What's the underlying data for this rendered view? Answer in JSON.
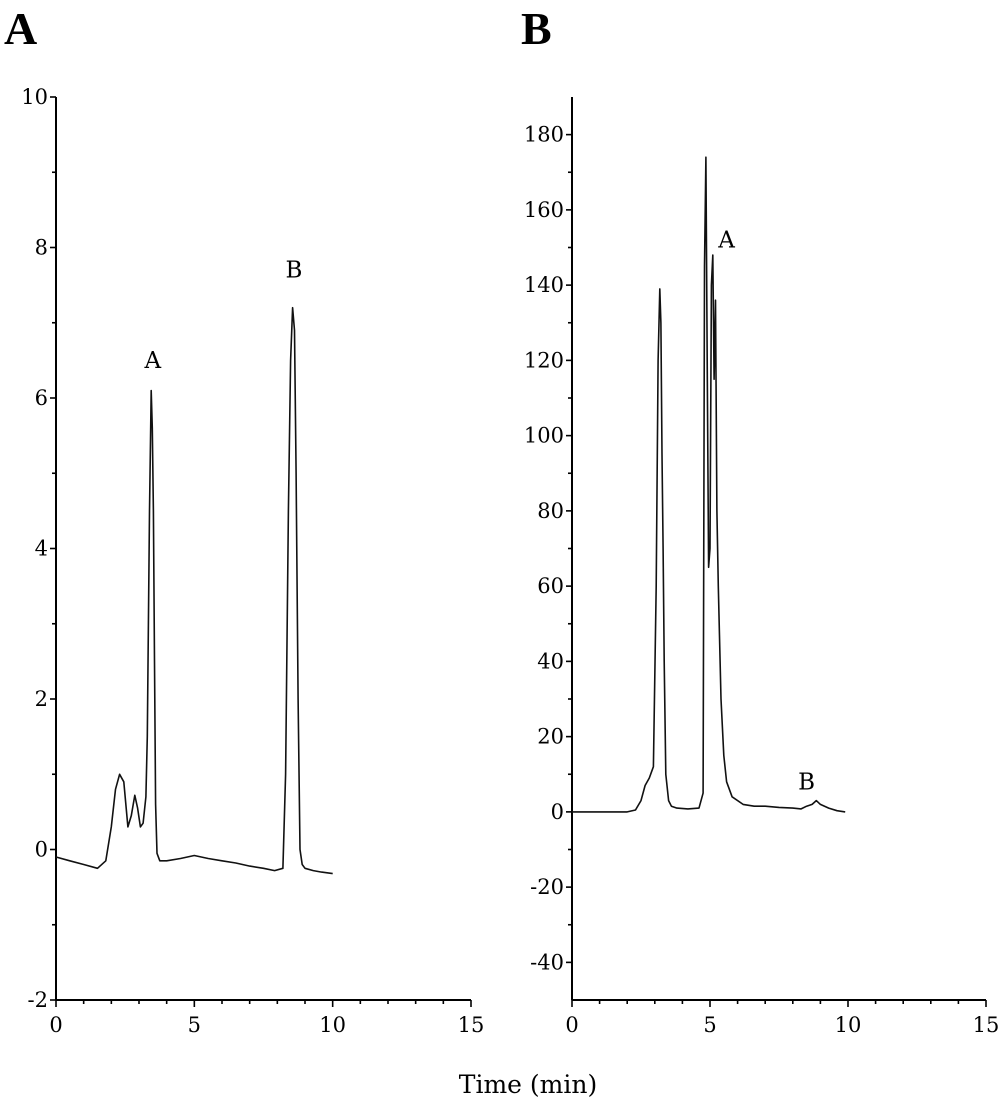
{
  "figure": {
    "x_title": "Time (min)"
  },
  "chart_data": [
    {
      "type": "line",
      "panel_label": "A",
      "xlabel": "",
      "ylabel": "",
      "xlim": [
        0,
        15
      ],
      "ylim": [
        -2,
        10
      ],
      "x_ticks": [
        0,
        5,
        10,
        15
      ],
      "y_ticks": [
        -2,
        0,
        2,
        4,
        6,
        8,
        10
      ],
      "grid": false,
      "annotations": [
        {
          "text": "A",
          "x": 3.5,
          "y": 6.4
        },
        {
          "text": "B",
          "x": 8.6,
          "y": 7.6
        }
      ],
      "series": [
        {
          "x": [
            0,
            0.5,
            1.0,
            1.5,
            1.8,
            2.0,
            2.15,
            2.3,
            2.45,
            2.6,
            2.72,
            2.85,
            2.95,
            3.05,
            3.15,
            3.25,
            3.3,
            3.38,
            3.44,
            3.48,
            3.52,
            3.56,
            3.6,
            3.65,
            3.75,
            4.0,
            4.5,
            5.0,
            5.5,
            6.0,
            6.5,
            7.0,
            7.5,
            7.9,
            8.2,
            8.3,
            8.4,
            8.48,
            8.55,
            8.62,
            8.68,
            8.75,
            8.82,
            8.9,
            9.0,
            9.3,
            9.6,
            10.0
          ],
          "y": [
            -0.1,
            -0.15,
            -0.2,
            -0.25,
            -0.15,
            0.3,
            0.8,
            1.0,
            0.9,
            0.3,
            0.45,
            0.72,
            0.55,
            0.3,
            0.35,
            0.7,
            1.5,
            4.5,
            6.1,
            5.6,
            4.5,
            2.5,
            0.6,
            -0.05,
            -0.15,
            -0.15,
            -0.12,
            -0.08,
            -0.12,
            -0.15,
            -0.18,
            -0.22,
            -0.25,
            -0.28,
            -0.25,
            1.0,
            4.5,
            6.5,
            7.2,
            6.9,
            5.0,
            2.0,
            0.0,
            -0.2,
            -0.25,
            -0.28,
            -0.3,
            -0.32
          ]
        }
      ]
    },
    {
      "type": "line",
      "panel_label": "B",
      "xlabel": "",
      "ylabel": "",
      "xlim": [
        0,
        15
      ],
      "ylim": [
        -50,
        190
      ],
      "x_ticks": [
        0,
        5,
        10,
        15
      ],
      "y_ticks": [
        -40,
        -20,
        0,
        20,
        40,
        60,
        80,
        100,
        120,
        140,
        160,
        180
      ],
      "grid": false,
      "annotations": [
        {
          "text": "A",
          "x": 5.6,
          "y": 150
        },
        {
          "text": "B",
          "x": 8.5,
          "y": 6
        }
      ],
      "series": [
        {
          "x": [
            0,
            1.0,
            2.0,
            2.3,
            2.5,
            2.65,
            2.8,
            2.95,
            3.05,
            3.12,
            3.18,
            3.22,
            3.26,
            3.3,
            3.34,
            3.4,
            3.5,
            3.6,
            3.8,
            4.2,
            4.6,
            4.75,
            4.8,
            4.85,
            4.9,
            4.95,
            5.0,
            5.05,
            5.1,
            5.15,
            5.2,
            5.25,
            5.3,
            5.4,
            5.5,
            5.6,
            5.8,
            6.2,
            6.6,
            7.0,
            7.5,
            8.0,
            8.3,
            8.5,
            8.7,
            8.85,
            9.0,
            9.3,
            9.6,
            9.9
          ],
          "y": [
            0,
            0,
            0,
            0.5,
            3,
            7,
            9,
            12,
            60,
            120,
            139,
            130,
            95,
            70,
            40,
            10,
            3,
            1.5,
            1,
            0.8,
            1,
            5,
            145,
            174,
            120,
            65,
            70,
            140,
            148,
            115,
            136,
            80,
            60,
            30,
            15,
            8,
            4,
            2,
            1.5,
            1.5,
            1.2,
            1,
            0.8,
            1.5,
            2,
            3,
            2,
            1,
            0.3,
            0
          ]
        }
      ]
    }
  ]
}
